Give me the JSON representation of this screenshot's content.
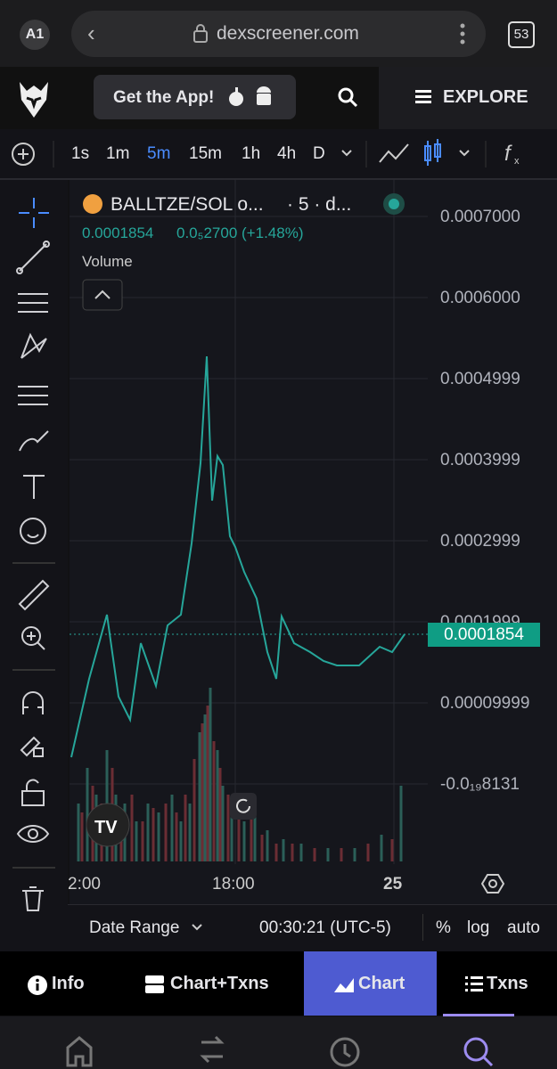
{
  "browser": {
    "profile": "A1",
    "url": "dexscreener.com",
    "tabs": "53"
  },
  "header": {
    "get_app": "Get the App!",
    "explore": "EXPLORE"
  },
  "toolbar": {
    "timeframes": [
      "1s",
      "1m",
      "5m",
      "15m",
      "1h",
      "4h",
      "D"
    ]
  },
  "chart": {
    "pair": "BALLTZE/SOL o...",
    "meta": "· 5 · d...",
    "price": "0.0001854",
    "change": "0.0₅2700 (+1.48%)",
    "volume": "Volume",
    "price_labels": [
      "0.0007000",
      "0.0006000",
      "0.0004999",
      "0.0003999",
      "0.0002999",
      "0.0001999",
      "0.00009999",
      "-0.0₁₉8131"
    ],
    "current_price": "0.0001854",
    "time_labels": [
      "2:00",
      "18:00",
      "25"
    ]
  },
  "bottom_bar": {
    "date_range": "Date Range",
    "clock": "00:30:21 (UTC-5)",
    "percent": "%",
    "log": "log",
    "auto": "auto"
  },
  "tabs": [
    "Info",
    "Chart+Txns",
    "Chart",
    "Txns"
  ]
}
